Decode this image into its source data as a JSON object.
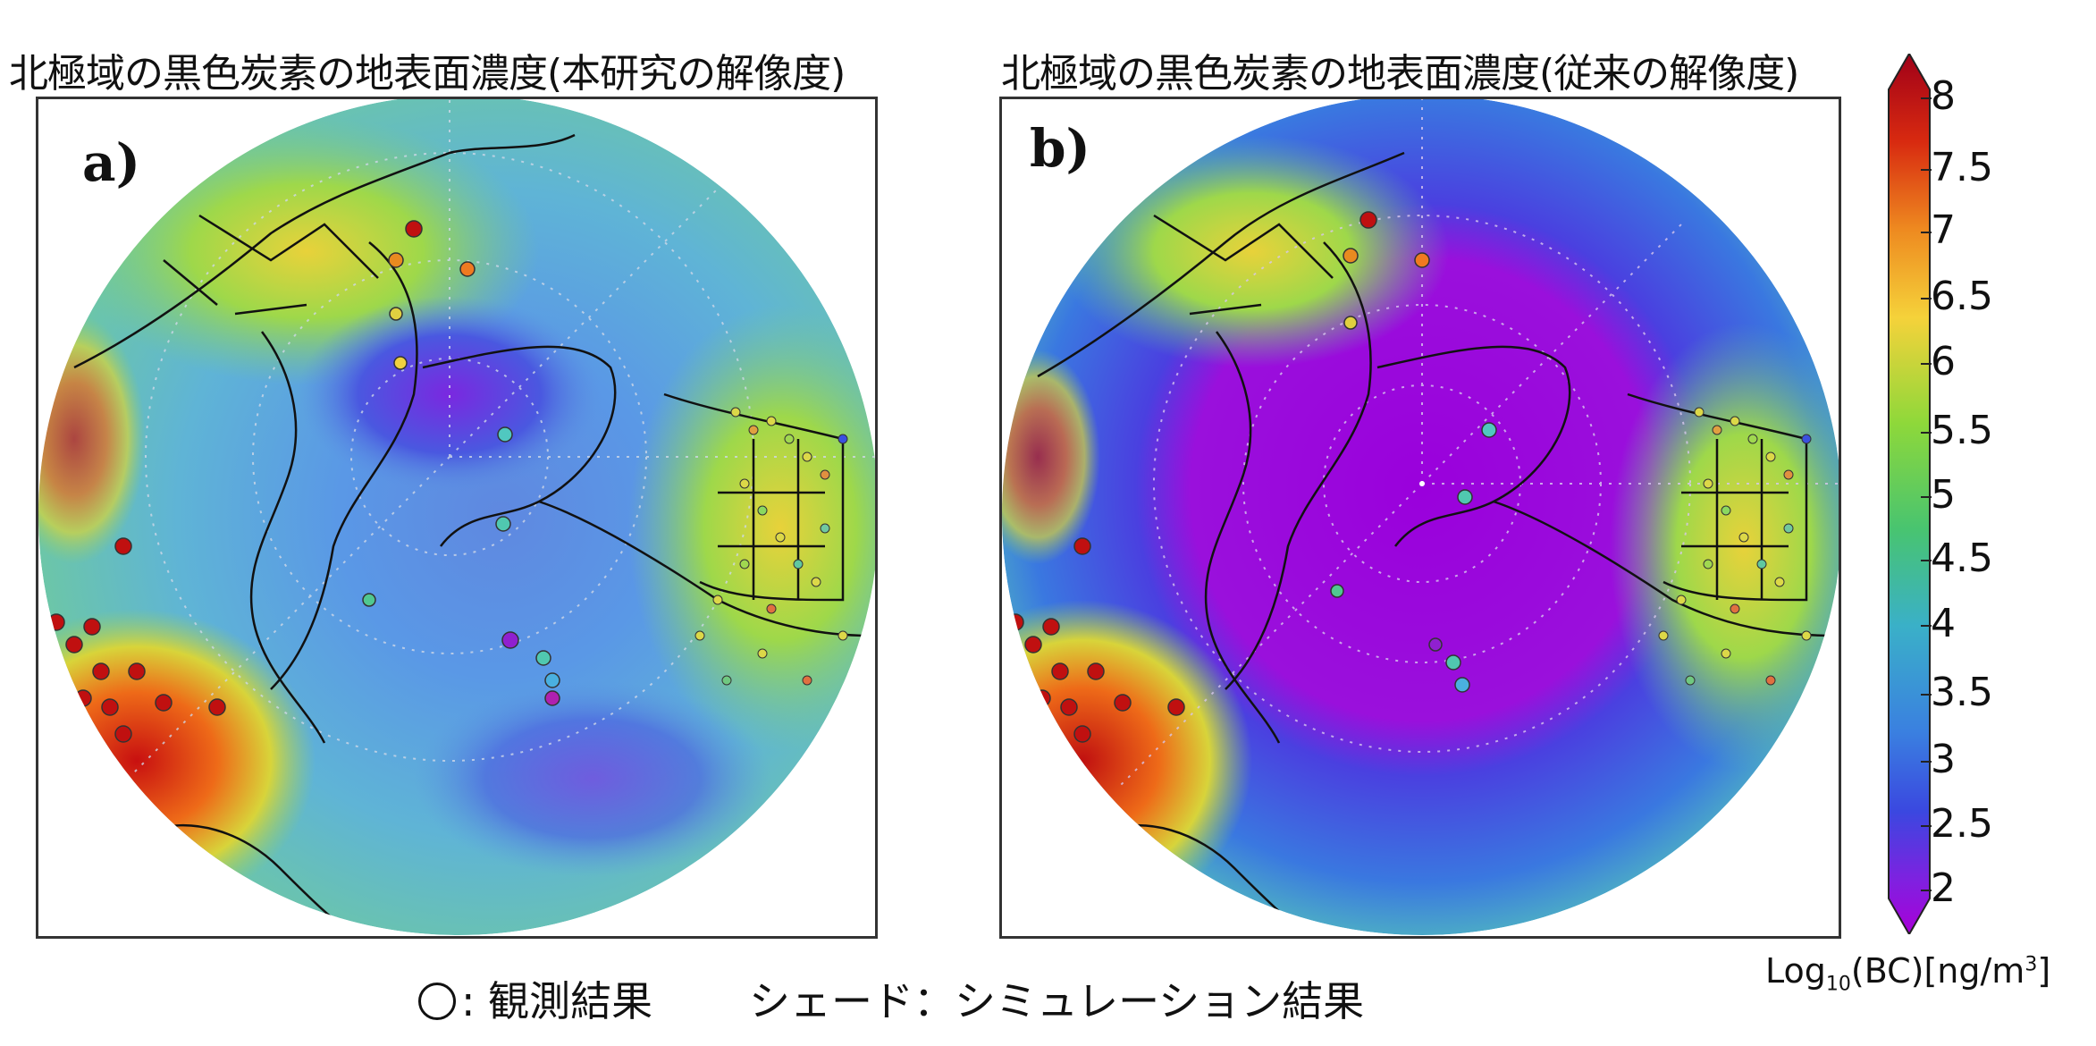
{
  "panels": [
    {
      "title": "北極域の黒色炭素の地表面濃度(本研究の解像度)",
      "label": "a)"
    },
    {
      "title": "北極域の黒色炭素の地表面濃度(従来の解像度)",
      "label": "b)"
    }
  ],
  "colorbar": {
    "ticks": [
      "8",
      "7.5",
      "7",
      "6.5",
      "6",
      "5.5",
      "5",
      "4.5",
      "4",
      "3.5",
      "3",
      "2.5",
      "2"
    ],
    "label_prefix": "Log",
    "label_sub": "10",
    "label_mid": "(BC)[ng/m",
    "label_sup": "3",
    "label_end": "]",
    "colors": [
      "#b40018",
      "#e03010",
      "#f08a20",
      "#f5d23a",
      "#9ad83a",
      "#4cc870",
      "#3cb8c0",
      "#3a8ee0",
      "#3550e0",
      "#7a20e0",
      "#a200dc"
    ]
  },
  "legend": {
    "obs_label": ": 観測結果",
    "sim_label": "シェード：シミュレーション結果"
  }
}
